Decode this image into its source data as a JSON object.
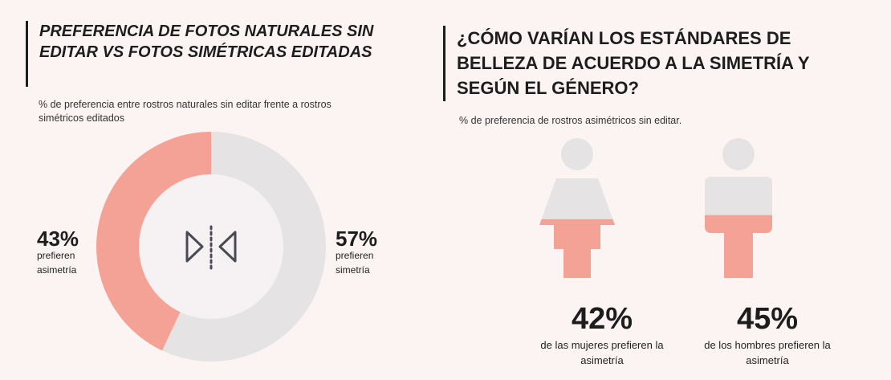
{
  "left": {
    "title": "PREFERENCIA DE FOTOS NATURALES SIN EDITAR VS FOTOS SIMÉTRICAS EDITADAS",
    "subtitle": "% de preferencia entre rostros naturales sin editar frente a rostros simétricos editados",
    "icon": "symmetry-icon"
  },
  "right": {
    "title": "¿CÓMO VARÍAN LOS ESTÁNDARES DE BELLEZA DE ACUERDO A LA SIMETRÍA Y SEGÚN EL GÉNERO?",
    "subtitle": "% de preferencia de rostros asimétricos sin editar."
  },
  "colors": {
    "accent": "#f4a295",
    "neutral": "#e5e3e4",
    "text": "#1d1d1d"
  },
  "chart_data": [
    {
      "type": "pie",
      "title": "PREFERENCIA DE FOTOS NATURALES SIN EDITAR VS FOTOS SIMÉTRICAS EDITADAS",
      "subtitle": "% de preferencia entre rostros naturales sin editar frente a rostros simétricos editados",
      "slices": [
        {
          "label_pct": "43%",
          "label": "prefieren asimetría",
          "value": 43,
          "color": "#f4a295"
        },
        {
          "label_pct": "57%",
          "label": "prefieren simetría",
          "value": 57,
          "color": "#e5e3e4"
        }
      ]
    },
    {
      "type": "bar",
      "title": "¿CÓMO VARÍAN LOS ESTÁNDARES DE BELLEZA DE ACUERDO A LA SIMETRÍA Y SEGÚN EL GÉNERO?",
      "subtitle": "% de preferencia de rostros asimétricos sin editar.",
      "categories": [
        "de las mujeres prefieren la asimetría",
        "de los hombres prefieren la asimetría"
      ],
      "values": [
        42,
        45
      ],
      "value_labels": [
        "42%",
        "45%"
      ],
      "ylim": [
        0,
        100
      ]
    }
  ]
}
